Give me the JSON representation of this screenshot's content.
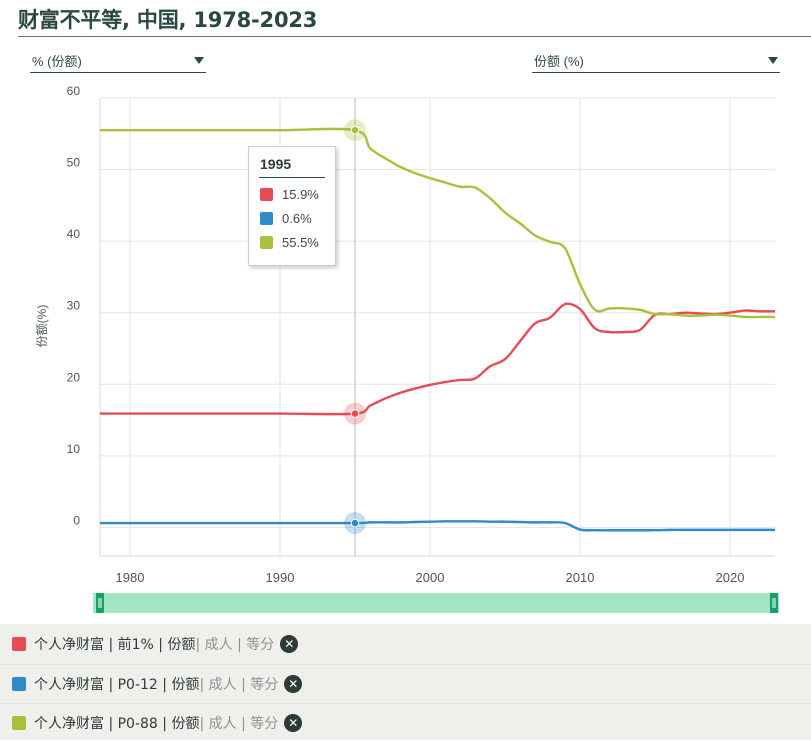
{
  "title": "财富不平等, 中国, 1978-2023",
  "selectors": {
    "left": {
      "value": "% (份额)"
    },
    "right": {
      "value": "份额 (%)"
    }
  },
  "chart_data": {
    "type": "line",
    "ylabel": "份额(%)",
    "xlabel": "",
    "xlim": [
      1978,
      2023
    ],
    "ylim": [
      -4,
      60
    ],
    "yticks": [
      0,
      10,
      20,
      30,
      40,
      50,
      60
    ],
    "xticks": [
      1980,
      1990,
      2000,
      2010,
      2020
    ],
    "grid": true,
    "colors": {
      "top1": "#e64c55",
      "p0_12": "#2e8bc9",
      "p0_88": "#a6c13a"
    },
    "series": [
      {
        "key": "top1",
        "color": "#e64c55",
        "x": [
          1978,
          1980,
          1985,
          1990,
          1995,
          1996,
          1997,
          1998,
          1999,
          2000,
          2001,
          2002,
          2003,
          2004,
          2005,
          2006,
          2007,
          2008,
          2009,
          2010,
          2011,
          2012,
          2013,
          2014,
          2015,
          2016,
          2017,
          2018,
          2019,
          2020,
          2021,
          2022,
          2023
        ],
        "y": [
          15.9,
          15.9,
          15.9,
          15.9,
          15.9,
          17.0,
          18.0,
          18.8,
          19.4,
          19.9,
          20.3,
          20.6,
          20.8,
          22.5,
          23.5,
          26.0,
          28.5,
          29.3,
          31.2,
          30.5,
          27.8,
          27.3,
          27.3,
          27.6,
          29.7,
          29.8,
          30.0,
          29.9,
          29.8,
          30.0,
          30.3,
          30.2,
          30.2
        ]
      },
      {
        "key": "p0_12",
        "color": "#2e8bc9",
        "x": [
          1978,
          1980,
          1985,
          1990,
          1995,
          1996,
          1997,
          1998,
          1999,
          2000,
          2001,
          2002,
          2003,
          2004,
          2005,
          2006,
          2007,
          2008,
          2009,
          2010,
          2011,
          2012,
          2013,
          2014,
          2015,
          2016,
          2017,
          2018,
          2019,
          2020,
          2021,
          2022,
          2023
        ],
        "y": [
          0.6,
          0.6,
          0.6,
          0.6,
          0.6,
          0.7,
          0.7,
          0.7,
          0.75,
          0.8,
          0.85,
          0.85,
          0.85,
          0.8,
          0.8,
          0.75,
          0.7,
          0.7,
          0.6,
          -0.3,
          -0.4,
          -0.4,
          -0.4,
          -0.4,
          -0.4,
          -0.35,
          -0.35,
          -0.35,
          -0.35,
          -0.35,
          -0.35,
          -0.35,
          -0.35
        ]
      },
      {
        "key": "p0_88",
        "color": "#a6c13a",
        "x": [
          1978,
          1980,
          1985,
          1990,
          1995,
          1996,
          1997,
          1998,
          1999,
          2000,
          2001,
          2002,
          2003,
          2004,
          2005,
          2006,
          2007,
          2008,
          2009,
          2010,
          2011,
          2012,
          2013,
          2014,
          2015,
          2016,
          2017,
          2018,
          2019,
          2020,
          2021,
          2022,
          2023
        ],
        "y": [
          55.5,
          55.5,
          55.5,
          55.5,
          55.5,
          53.0,
          51.6,
          50.4,
          49.5,
          48.8,
          48.2,
          47.6,
          47.5,
          46.0,
          44.0,
          42.5,
          40.8,
          39.9,
          39.0,
          34.0,
          30.4,
          30.6,
          30.6,
          30.4,
          29.8,
          29.8,
          29.6,
          29.6,
          29.7,
          29.6,
          29.4,
          29.4,
          29.4
        ]
      }
    ],
    "tooltip": {
      "year": "1995",
      "values": [
        {
          "key": "top1",
          "text": "15.9%"
        },
        {
          "key": "p0_12",
          "text": "0.6%"
        },
        {
          "key": "p0_88",
          "text": "55.5%"
        }
      ]
    },
    "highlight_x": 1995
  },
  "legend": [
    {
      "key": "top1",
      "color": "#e64c55",
      "main": "个人净财富 | 前1% | 份额",
      "muted": " | 成人 | 等分"
    },
    {
      "key": "p0_12",
      "color": "#2e8bc9",
      "main": "个人净财富 | P0-12 | 份额",
      "muted": " | 成人 | 等分"
    },
    {
      "key": "p0_88",
      "color": "#a6c13a",
      "main": "个人净财富 | P0-88 | 份额",
      "muted": " | 成人 | 等分"
    }
  ],
  "range_slider": {
    "start": 1978,
    "end": 2023
  }
}
